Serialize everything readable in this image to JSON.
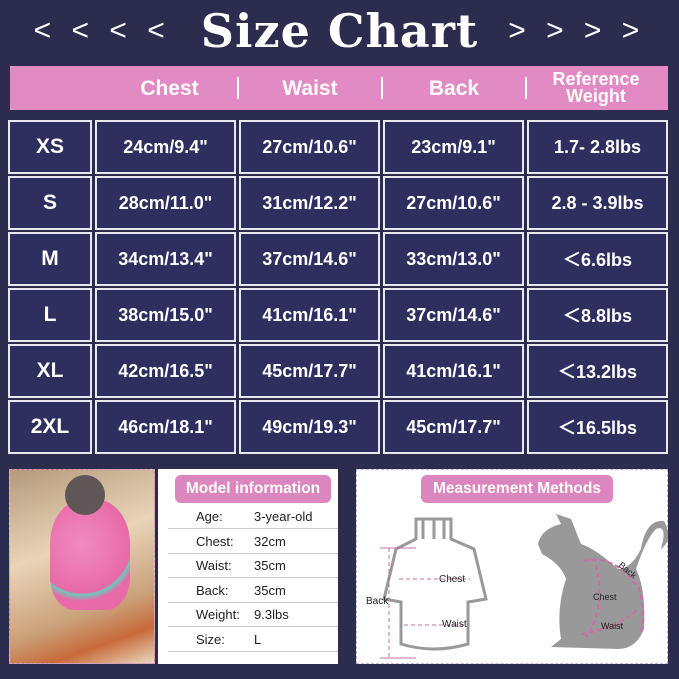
{
  "title": {
    "text": "Size Chart",
    "left_arrows": "< < < <",
    "right_arrows": "> > > >"
  },
  "columns": [
    "Chest",
    "Waist",
    "Back",
    "Reference Weight"
  ],
  "rows": [
    {
      "size": "XS",
      "chest": "24cm/9.4\"",
      "waist": "27cm/10.6\"",
      "back": "23cm/9.1\"",
      "weight": "1.7- 2.8lbs"
    },
    {
      "size": "S",
      "chest": "28cm/11.0\"",
      "waist": "31cm/12.2\"",
      "back": "27cm/10.6\"",
      "weight": "2.8 - 3.9lbs"
    },
    {
      "size": "M",
      "chest": "34cm/13.4\"",
      "waist": "37cm/14.6\"",
      "back": "33cm/13.0\"",
      "weight": "＜6.6lbs"
    },
    {
      "size": "L",
      "chest": "38cm/15.0\"",
      "waist": "41cm/16.1\"",
      "back": "37cm/14.6\"",
      "weight": "＜8.8lbs"
    },
    {
      "size": "XL",
      "chest": "42cm/16.5\"",
      "waist": "45cm/17.7\"",
      "back": "41cm/16.1\"",
      "weight": "＜13.2lbs"
    },
    {
      "size": "2XL",
      "chest": "46cm/18.1\"",
      "waist": "49cm/19.3\"",
      "back": "45cm/17.7\"",
      "weight": "＜16.5lbs"
    }
  ],
  "model": {
    "title": "Model information",
    "items": [
      {
        "label": "Age:",
        "value": "3-year-old"
      },
      {
        "label": "Chest:",
        "value": "32cm"
      },
      {
        "label": "Waist:",
        "value": "35cm"
      },
      {
        "label": "Back:",
        "value": "35cm"
      },
      {
        "label": "Weight:",
        "value": "9.3lbs"
      },
      {
        "label": "Size:",
        "value": "L"
      }
    ]
  },
  "measurement": {
    "title": "Measurement Methods",
    "back": "Back",
    "chest": "Chest",
    "waist": "Waist"
  },
  "colors": {
    "background": "#2b2c4e",
    "header": "#e28ac4",
    "cell": "#2e2f5e",
    "accent": "#dc86bf"
  }
}
